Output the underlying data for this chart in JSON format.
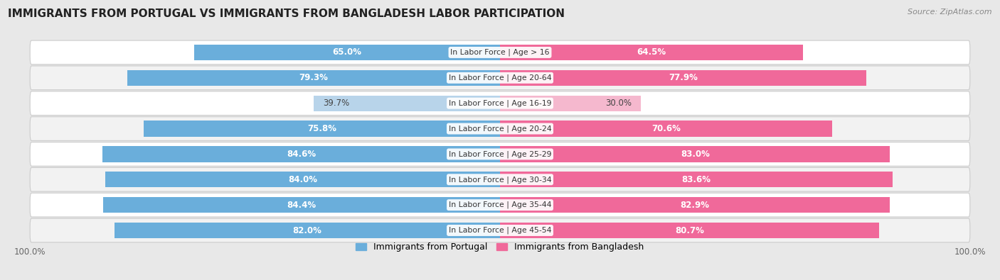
{
  "title": "IMMIGRANTS FROM PORTUGAL VS IMMIGRANTS FROM BANGLADESH LABOR PARTICIPATION",
  "source": "Source: ZipAtlas.com",
  "categories": [
    "In Labor Force | Age > 16",
    "In Labor Force | Age 20-64",
    "In Labor Force | Age 16-19",
    "In Labor Force | Age 20-24",
    "In Labor Force | Age 25-29",
    "In Labor Force | Age 30-34",
    "In Labor Force | Age 35-44",
    "In Labor Force | Age 45-54"
  ],
  "portugal_values": [
    65.0,
    79.3,
    39.7,
    75.8,
    84.6,
    84.0,
    84.4,
    82.0
  ],
  "bangladesh_values": [
    64.5,
    77.9,
    30.0,
    70.6,
    83.0,
    83.6,
    82.9,
    80.7
  ],
  "portugal_color": "#6aaedb",
  "portugal_color_light": "#b8d4ea",
  "bangladesh_color": "#f0699a",
  "bangladesh_color_light": "#f5b8ce",
  "bar_height": 0.62,
  "background_color": "#e8e8e8",
  "row_bg_even": "#ffffff",
  "row_bg_odd": "#f2f2f2",
  "label_fontsize": 8.5,
  "title_fontsize": 11,
  "max_value": 100.0,
  "legend_portugal": "Immigrants from Portugal",
  "legend_bangladesh": "Immigrants from Bangladesh"
}
